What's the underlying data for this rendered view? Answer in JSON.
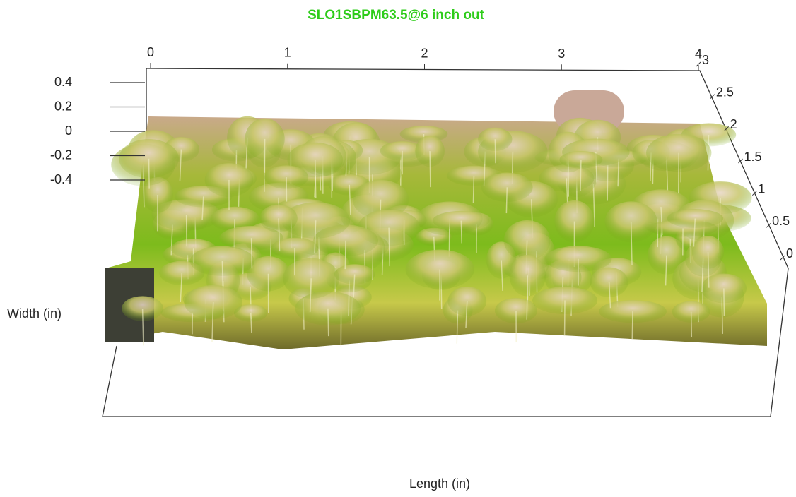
{
  "chart_data": {
    "type": "surface",
    "title": "SLO1SBPM63.5@6 inch out",
    "xlabel": "Length (in)",
    "ylabel": "Width (in)",
    "xlim": [
      0,
      4
    ],
    "xticks": [
      0,
      1,
      2,
      3,
      4
    ],
    "ylim": [
      0,
      3
    ],
    "yticks": [
      0,
      0.5,
      1,
      1.5,
      2,
      2.5,
      3
    ],
    "zlim": [
      -0.4,
      0.4
    ],
    "zticks": [
      0.4,
      0.2,
      0,
      -0.2,
      -0.4
    ],
    "title_color": "#2ecc1a"
  }
}
